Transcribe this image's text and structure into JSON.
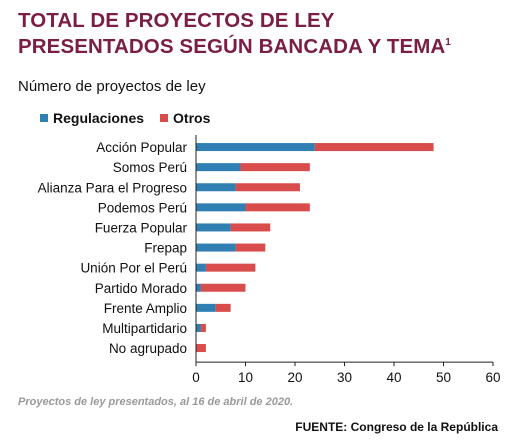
{
  "title_line1": "TOTAL DE PROYECTOS DE LEY",
  "title_line2": "PRESENTADOS SEGÚN BANCADA Y TEMA",
  "title_superscript": "1",
  "subtitle": "Número de proyectos de ley",
  "note": "Proyectos de ley presentados, al 16 de abril de 2020.",
  "source": "FUENTE: Congreso de la República",
  "colors": {
    "title": "#7b1e45",
    "regulaciones": "#2f7fb3",
    "otros": "#d94c4c"
  },
  "chart_data": {
    "type": "bar",
    "orientation": "horizontal",
    "stacked": true,
    "categories": [
      "Acción Popular",
      "Somos Perú",
      "Alianza Para el Progreso",
      "Podemos Perú",
      "Fuerza Popular",
      "Frepap",
      "Unión Por el Perú",
      "Partido Morado",
      "Frente Amplio",
      "Multipartidario",
      "No agrupado"
    ],
    "series": [
      {
        "name": "Regulaciones",
        "color": "#2f7fb3",
        "values": [
          24,
          9,
          8,
          10,
          7,
          8,
          2,
          1,
          4,
          1,
          0
        ]
      },
      {
        "name": "Otros",
        "color": "#d94c4c",
        "values": [
          24,
          14,
          13,
          13,
          8,
          6,
          10,
          9,
          3,
          1,
          2
        ]
      }
    ],
    "xlim": [
      0,
      60
    ],
    "xticks": [
      0,
      10,
      20,
      30,
      40,
      50,
      60
    ],
    "legend_position": "top-left",
    "grid": false
  }
}
